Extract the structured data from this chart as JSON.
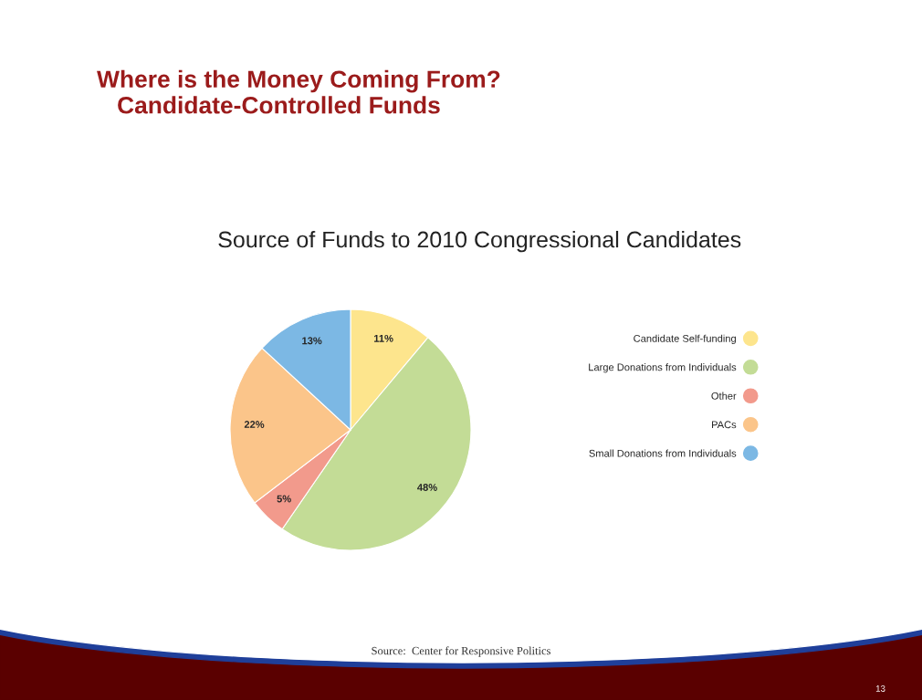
{
  "chart_data": {
    "type": "pie",
    "title": "Where is the Money Coming From?\n   Candidate-Controlled Funds",
    "subtitle": "Source of Funds to 2010 Congressional Candidates",
    "categories": [
      "Candidate Self-funding",
      "Large Donations from Individuals",
      "Other",
      "PACs",
      "Small Donations from Individuals"
    ],
    "values": [
      11,
      48,
      5,
      22,
      13
    ],
    "value_labels": [
      "11%",
      "48%",
      "5%",
      "22%",
      "13%"
    ],
    "colors": [
      "#fde58d",
      "#c3dc96",
      "#f29a8c",
      "#fbc58a",
      "#7cb8e4"
    ],
    "legend": "right",
    "annotations": [
      "Source:  Center for Responsive Politics",
      "13"
    ]
  }
}
